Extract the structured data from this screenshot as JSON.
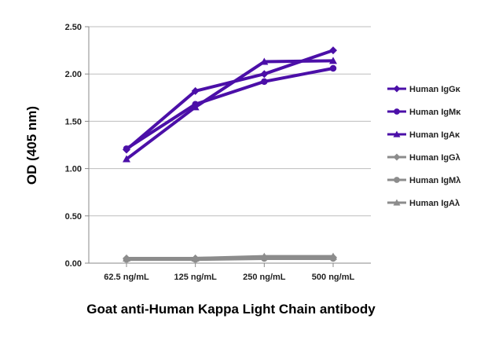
{
  "chart_data": {
    "type": "line",
    "title": "",
    "caption": "Goat anti-Human Kappa Light Chain antibody",
    "xlabel": "",
    "ylabel": "OD (405 nm)",
    "categories": [
      "62.5 ng/mL",
      "125 ng/mL",
      "250 ng/mL",
      "500 ng/mL"
    ],
    "ylim": [
      0,
      2.5
    ],
    "yticks": [
      "0.00",
      "0.50",
      "1.00",
      "1.50",
      "2.00",
      "2.50"
    ],
    "grid": "horizontal",
    "legend_position": "right",
    "series": [
      {
        "name": "Human IgGκ",
        "color": "#4B0FA8",
        "marker": "diamond",
        "values": [
          1.2,
          1.82,
          2.0,
          2.25
        ]
      },
      {
        "name": "Human IgMκ",
        "color": "#4B0FA8",
        "marker": "circle",
        "values": [
          1.21,
          1.68,
          1.92,
          2.06
        ]
      },
      {
        "name": "Human IgAκ",
        "color": "#4B0FA8",
        "marker": "triangle",
        "values": [
          1.1,
          1.65,
          2.13,
          2.14
        ]
      },
      {
        "name": "Human IgGλ",
        "color": "#8C8C8C",
        "marker": "diamond",
        "values": [
          0.05,
          0.05,
          0.06,
          0.06
        ]
      },
      {
        "name": "Human IgMλ",
        "color": "#8C8C8C",
        "marker": "circle",
        "values": [
          0.04,
          0.04,
          0.05,
          0.05
        ]
      },
      {
        "name": "Human IgAλ",
        "color": "#8C8C8C",
        "marker": "triangle",
        "values": [
          0.05,
          0.05,
          0.07,
          0.07
        ]
      }
    ]
  }
}
